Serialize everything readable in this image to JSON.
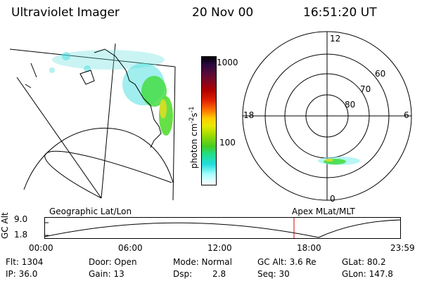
{
  "header": {
    "instrument": "Ultraviolet Imager",
    "date": "20 Nov 00",
    "time": "16:51:20 UT"
  },
  "colorbar": {
    "unit_label": "photon cm",
    "unit_exp1": "-2",
    "unit_s": "s",
    "unit_exp2": "-1",
    "tick_1000": "1000",
    "tick_100": "100"
  },
  "polar": {
    "label_12": "12",
    "label_18": "18",
    "label_6": "6",
    "label_0": "0",
    "lat_60": "60",
    "lat_70": "70",
    "lat_80": "80"
  },
  "timeline": {
    "left_title": "Geographic Lat/Lon",
    "right_title": "Apex MLat/MLT",
    "axis_label": "GC Alt",
    "y_top": "9.0",
    "y_bottom": "1.8",
    "ticks": [
      "00:00",
      "06:00",
      "12:00",
      "18:00",
      "23:59"
    ]
  },
  "stats": {
    "flt": "Flt: 1304",
    "ip": "IP: 36.0",
    "door": "Door: Open",
    "gain": "Gain: 13",
    "mode": "Mode: Normal",
    "dsp_label": "Dsp:",
    "dsp_value": "2.8",
    "gc_alt": "GC Alt: 3.6 Re",
    "seq": "Seq: 30",
    "glat": "GLat: 80.2",
    "glon": "GLon: 147.8"
  },
  "colors": {
    "marker": "#e00000",
    "aurora_green": "#33dd33",
    "aurora_cyan": "#33dddd"
  }
}
